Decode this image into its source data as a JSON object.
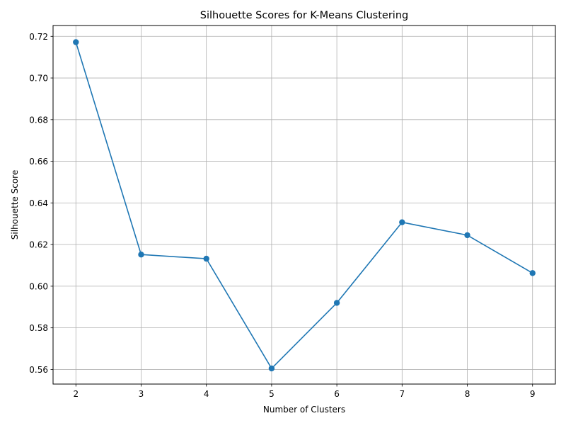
{
  "chart_data": {
    "type": "line",
    "title": "Silhouette Scores for K-Means Clustering",
    "xlabel": "Number of Clusters",
    "ylabel": "Silhouette Score",
    "x": [
      2,
      3,
      4,
      5,
      6,
      7,
      8,
      9
    ],
    "series": [
      {
        "values": [
          0.7172,
          0.6152,
          0.6132,
          0.5605,
          0.592,
          0.6307,
          0.6245,
          0.6063
        ],
        "marker": "circle"
      }
    ],
    "xlim": [
      1.65,
      9.35
    ],
    "ylim": [
      0.553,
      0.7252
    ],
    "xticks": [
      "2",
      "3",
      "4",
      "5",
      "6",
      "7",
      "8",
      "9"
    ],
    "yticks": [
      "0.56",
      "0.58",
      "0.60",
      "0.62",
      "0.64",
      "0.66",
      "0.68",
      "0.70",
      "0.72"
    ],
    "grid": true,
    "line_color": "#1f77b4",
    "grid_color": "#b0b0b0"
  }
}
